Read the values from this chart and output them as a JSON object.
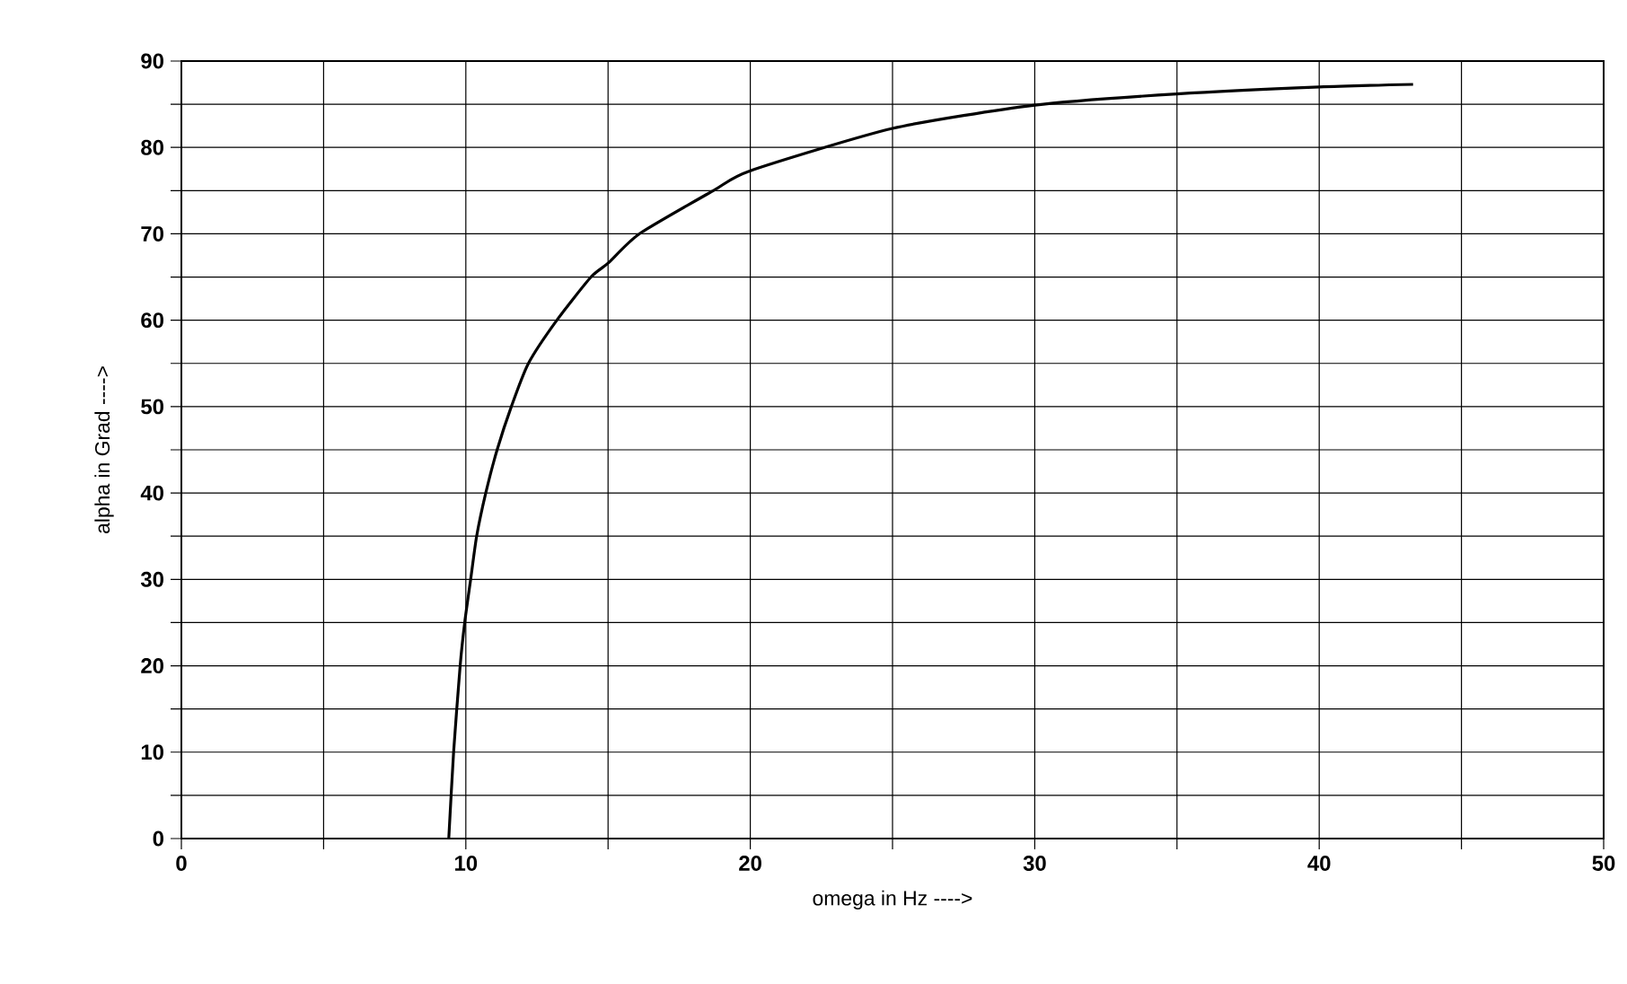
{
  "chart_data": {
    "type": "line",
    "xlabel": "omega in Hz ---->",
    "ylabel": "alpha in Grad ---->",
    "xlim": [
      0,
      50
    ],
    "ylim": [
      0,
      90
    ],
    "xticks": [
      0,
      {
        "value": 5,
        "label": null
      },
      10,
      {
        "value": 15,
        "label": null
      },
      20,
      {
        "value": 25,
        "label": null
      },
      30,
      {
        "value": 35,
        "label": null
      },
      40,
      {
        "value": 45,
        "label": null
      },
      50
    ],
    "yticks": [
      0,
      {
        "value": 5,
        "label": null
      },
      10,
      {
        "value": 15,
        "label": null
      },
      20,
      {
        "value": 25,
        "label": null
      },
      30,
      {
        "value": 35,
        "label": null
      },
      40,
      {
        "value": 45,
        "label": null
      },
      50,
      {
        "value": 55,
        "label": null
      },
      60,
      {
        "value": 65,
        "label": null
      },
      70,
      {
        "value": 75,
        "label": null
      },
      80,
      {
        "value": 85,
        "label": null
      },
      90
    ],
    "grid": true,
    "marker": "none",
    "line_style": "solid",
    "series": [
      {
        "color": "#000000",
        "x": [
          9.4,
          9.57,
          9.8,
          9.96,
          10.17,
          10.38,
          10.7,
          11.1,
          11.6,
          12.2,
          13.2,
          14.4,
          15,
          16.1,
          18.7,
          20,
          25,
          30,
          35,
          40,
          43.3
        ],
        "values": [
          0,
          10,
          20,
          25,
          30,
          35,
          40,
          45,
          50,
          55,
          60,
          65,
          66.6,
          70,
          75,
          77.3,
          82.2,
          84.9,
          86.2,
          87,
          87.3
        ]
      }
    ]
  }
}
